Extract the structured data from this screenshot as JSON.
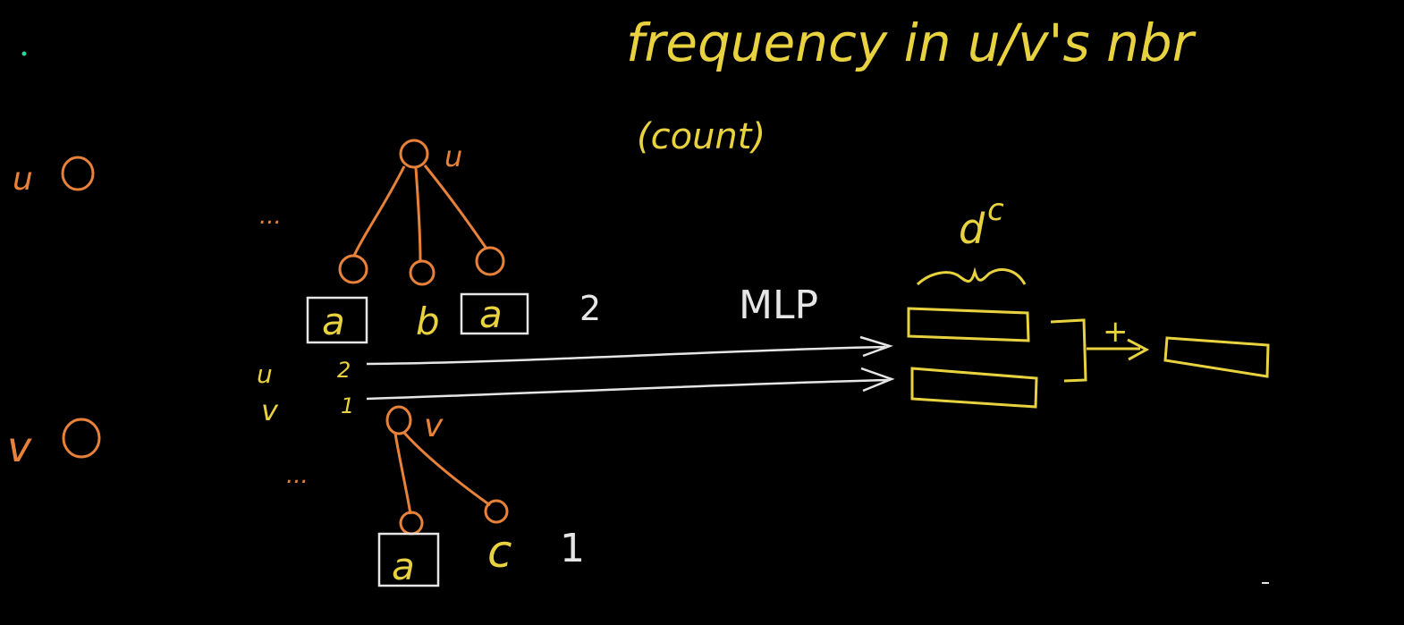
{
  "header": {
    "title": "frequency  in u/v's nbr",
    "subtitle": "(count)"
  },
  "left_nodes": [
    {
      "label": "u"
    },
    {
      "label": "v"
    }
  ],
  "tree_u": {
    "root_label": "u",
    "ellipsis": "...",
    "leaves": [
      "a",
      "b",
      "a"
    ],
    "count": "2"
  },
  "tree_v": {
    "root_label": "v",
    "ellipsis": "...",
    "leaves": [
      "a",
      "c"
    ],
    "count": "1"
  },
  "count_rows": [
    {
      "node": "u",
      "count": "2"
    },
    {
      "node": "v",
      "count": "1"
    }
  ],
  "arrow_label": "MLP",
  "dim_label": "d",
  "dim_superscript": "c",
  "combine_op": "+",
  "colors": {
    "background": "#000000",
    "orange": "#e8823a",
    "yellow": "#e9d23f",
    "white": "#e6e6e6"
  }
}
